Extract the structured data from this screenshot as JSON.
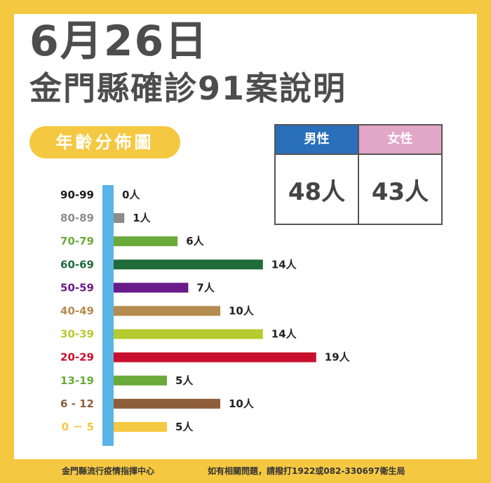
{
  "title_date": "6月26日",
  "title_main": "金門縣確診91案說明",
  "age_label": "年齡分佈圖",
  "gender_table": {
    "male_label": "男性",
    "male_value": "48人",
    "female_label": "女性",
    "female_value": "43人",
    "male_color": "#2a6fba",
    "female_color": "#e2a6c8"
  },
  "chart_data": {
    "type": "bar",
    "orientation": "horizontal",
    "title": "年齡分佈圖",
    "unit": "人",
    "xlim": [
      0,
      19
    ],
    "categories": [
      "90-99",
      "80-89",
      "70-79",
      "60-69",
      "50-59",
      "40-49",
      "30-39",
      "20-29",
      "13-19",
      "6-12",
      "0-5"
    ],
    "category_labels": [
      "90-99",
      "80-89",
      "70-79",
      "60-69",
      "50-59",
      "40-49",
      "30-39",
      "20-29",
      "13-19",
      "6 - 12",
      "0 － 5"
    ],
    "values": [
      0,
      1,
      6,
      14,
      7,
      10,
      14,
      19,
      5,
      10,
      5
    ],
    "value_labels": [
      "0人",
      "1人",
      "6人",
      "14人",
      "7人",
      "10人",
      "14人",
      "19人",
      "5人",
      "10人",
      "5人"
    ],
    "colors": [
      "#1a1a1a",
      "#8c8c8c",
      "#6aaa3a",
      "#1f6b3a",
      "#6a1b8a",
      "#b58b4e",
      "#b5cc2e",
      "#c8102e",
      "#6aaa3a",
      "#8e5f3a",
      "#f5c842"
    ],
    "axis_color": "#5ab4e5"
  },
  "footer": {
    "left": "金門縣流行疫情指揮中心",
    "right": "如有相關問題，請撥打1922或082-330697衛生局"
  }
}
